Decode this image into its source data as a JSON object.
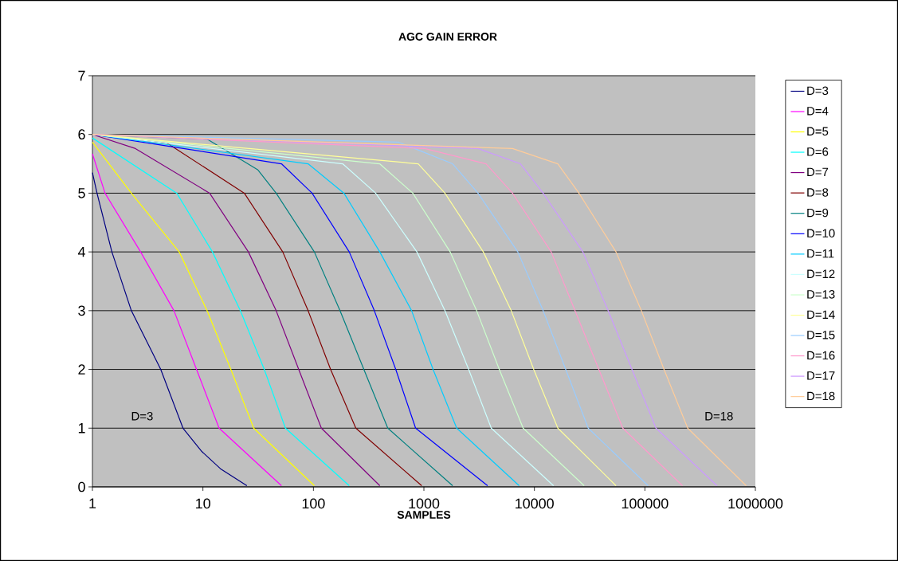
{
  "chart_data": {
    "type": "line",
    "title": "AGC GAIN ERROR",
    "xlabel": "SAMPLES",
    "log": "x",
    "grid": "y",
    "legend": "right",
    "marker": "none",
    "line_style": "solid",
    "xlim": [
      1,
      1000000
    ],
    "ylim": [
      0,
      7
    ],
    "xticks": [
      1,
      10,
      100,
      1000,
      10000,
      100000,
      1000000
    ],
    "yticks": [
      0,
      1,
      2,
      3,
      4,
      5,
      6,
      7
    ],
    "annotations": [
      "D=3",
      "D=18"
    ],
    "series": [
      {
        "name": "D=3",
        "color": "#000080",
        "x": [
          1,
          1.1,
          1.5,
          2.25,
          4.15,
          6.6,
          9.8,
          14.4,
          25
        ],
        "values": [
          5.35,
          5,
          4,
          3,
          2,
          1,
          0.6,
          0.31,
          0.02
        ]
      },
      {
        "name": "D=4",
        "color": "#ff00ff",
        "x": [
          1,
          1.3,
          2.73,
          5.47,
          8.75,
          14,
          51.4
        ],
        "values": [
          5.67,
          5,
          4,
          3,
          2,
          1,
          0.02
        ]
      },
      {
        "name": "D=5",
        "color": "#ffff00",
        "x": [
          1,
          2.25,
          6.1,
          10.9,
          17.9,
          28.8,
          102
        ],
        "values": [
          5.87,
          5,
          4,
          3,
          2,
          1,
          0.02
        ]
      },
      {
        "name": "D=6",
        "color": "#00ffff",
        "x": [
          1,
          5.8,
          12.2,
          21.8,
          35.9,
          55.8,
          211
        ],
        "values": [
          5.94,
          5,
          4,
          3,
          2,
          1,
          0.02
        ]
      },
      {
        "name": "D=7",
        "color": "#800080",
        "x": [
          1,
          2.45,
          11.5,
          25.8,
          46,
          73.6,
          118,
          399
        ],
        "values": [
          6,
          5.76,
          5,
          4,
          3,
          2,
          1,
          0.02
        ]
      },
      {
        "name": "D=8",
        "color": "#800000",
        "x": [
          1,
          4.76,
          23.7,
          52.8,
          89.5,
          143,
          242,
          955
        ],
        "values": [
          6,
          5.85,
          5,
          4,
          3,
          2,
          1,
          0.02
        ]
      },
      {
        "name": "D=9",
        "color": "#008080",
        "x": [
          1,
          10.9,
          31.3,
          46,
          102,
          174,
          286,
          471,
          1820
        ],
        "values": [
          6,
          5.92,
          5.4,
          5,
          4,
          3,
          2,
          1,
          0.02
        ]
      },
      {
        "name": "D=10",
        "color": "#0000ff",
        "x": [
          1,
          51.4,
          97.3,
          211,
          356,
          556,
          841,
          3770
        ],
        "values": [
          6,
          5.5,
          5,
          4,
          3,
          2,
          1,
          0.02
        ]
      },
      {
        "name": "D=11",
        "color": "#00ccff",
        "x": [
          1,
          89.5,
          189,
          399,
          774,
          1210,
          1980,
          7280
        ],
        "values": [
          6,
          5.5,
          5,
          4,
          3,
          2,
          1,
          0.02
        ]
      },
      {
        "name": "D=12",
        "color": "#ccffff",
        "x": [
          1,
          184,
          366,
          865,
          1550,
          2540,
          4070,
          14900
        ],
        "values": [
          6,
          5.5,
          5,
          4,
          3,
          2,
          1,
          0.02
        ]
      },
      {
        "name": "D=13",
        "color": "#ccffcc",
        "x": [
          1,
          398,
          794,
          1730,
          3000,
          4810,
          7910,
          28200
        ],
        "values": [
          6,
          5.5,
          5,
          4,
          3,
          2,
          1,
          0.02
        ]
      },
      {
        "name": "D=14",
        "color": "#ffff99",
        "x": [
          1,
          889,
          1550,
          3450,
          6170,
          9860,
          16300,
          54800
        ],
        "values": [
          6,
          5.5,
          5,
          4,
          3,
          2,
          1,
          0.02
        ]
      },
      {
        "name": "D=15",
        "color": "#99ccff",
        "x": [
          1,
          587,
          1820,
          3090,
          7080,
          12000,
          19200,
          30700,
          107000
        ],
        "values": [
          6,
          5.87,
          5.5,
          5,
          4,
          3,
          2,
          1,
          0.02
        ]
      },
      {
        "name": "D=16",
        "color": "#ff99cc",
        "x": [
          1,
          1020,
          3650,
          6340,
          14200,
          23300,
          38300,
          63100,
          219000
        ],
        "values": [
          6,
          5.76,
          5.5,
          5,
          4,
          3,
          2,
          1,
          0.02
        ]
      },
      {
        "name": "D=17",
        "color": "#cc99ff",
        "x": [
          1,
          3090,
          7480,
          12000,
          27500,
          46500,
          76400,
          126000,
          449000
        ],
        "values": [
          6,
          5.76,
          5.5,
          5,
          4,
          3,
          2,
          1,
          0.02
        ]
      },
      {
        "name": "D=18",
        "color": "#ffcc99",
        "x": [
          1,
          6340,
          16300,
          25300,
          54800,
          92900,
          149000,
          244000,
          826000
        ],
        "values": [
          6,
          5.76,
          5.5,
          5,
          4,
          3,
          2,
          1,
          0.02
        ]
      }
    ]
  }
}
